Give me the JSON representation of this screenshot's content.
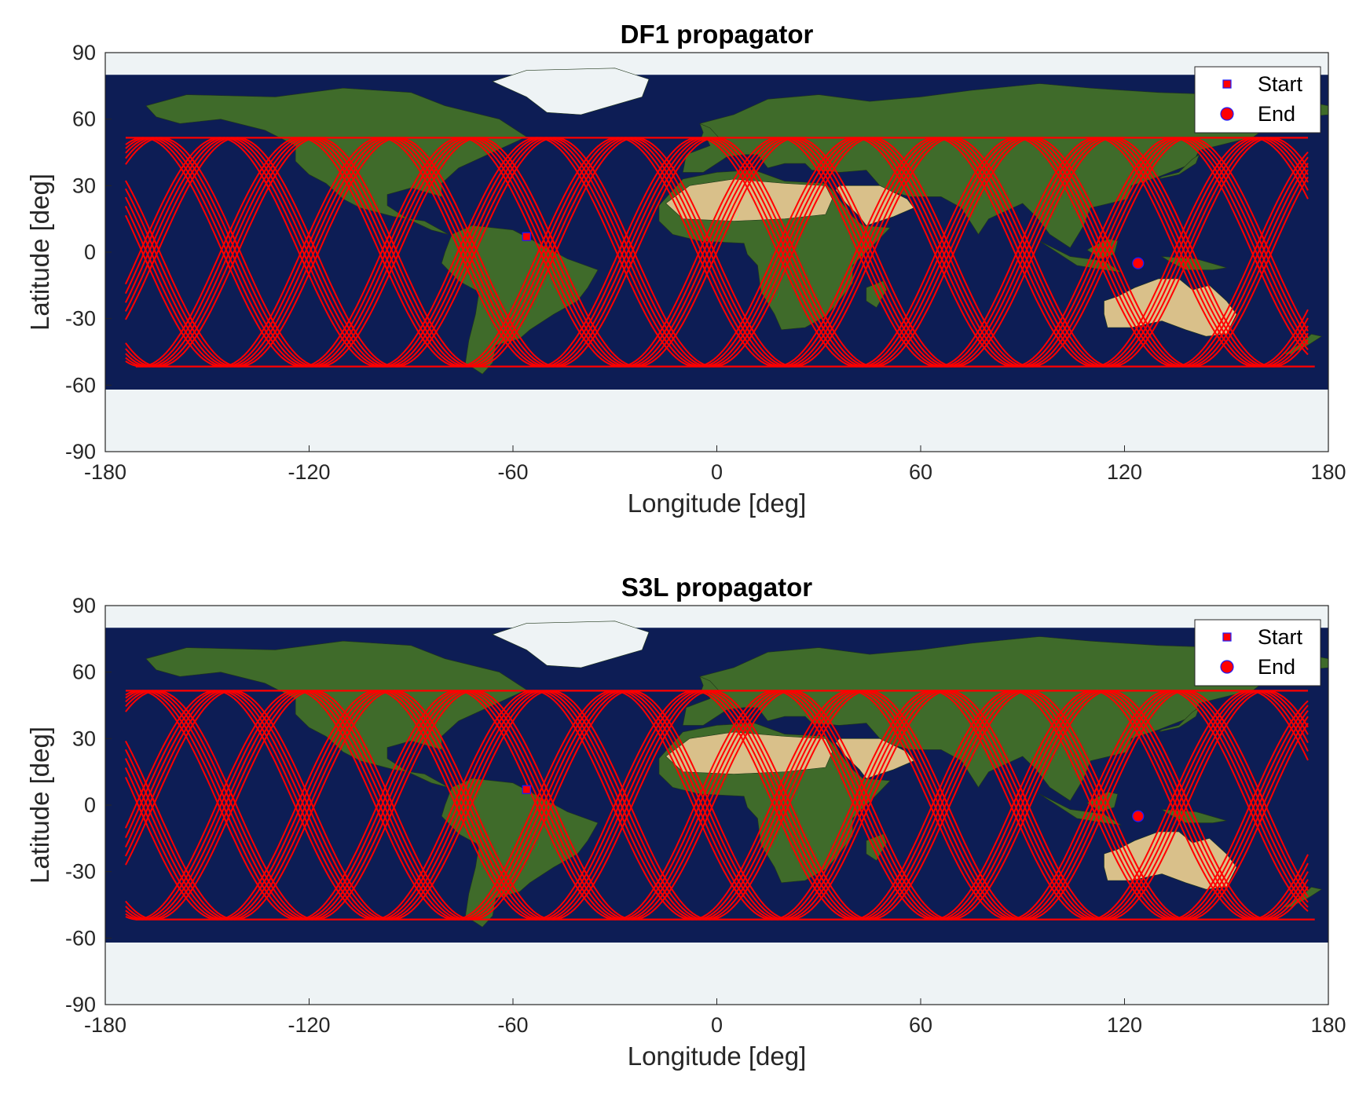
{
  "figure": {
    "panels": [
      {
        "title": "DF1 propagator",
        "xlabel": "Longitude [deg]",
        "ylabel": "Latitude [deg]",
        "legend": [
          {
            "label": "Start",
            "marker": "square"
          },
          {
            "label": "End",
            "marker": "circle"
          }
        ]
      },
      {
        "title": "S3L propagator",
        "xlabel": "Longitude [deg]",
        "ylabel": "Latitude [deg]",
        "legend": [
          {
            "label": "Start",
            "marker": "square"
          },
          {
            "label": "End",
            "marker": "circle"
          }
        ]
      }
    ],
    "xticks": [
      "-180",
      "-120",
      "-60",
      "0",
      "60",
      "120",
      "180"
    ],
    "yticks": [
      "90",
      "60",
      "30",
      "0",
      "-30",
      "-60",
      "-90"
    ]
  },
  "chart_data": [
    {
      "type": "line",
      "title": "DF1 propagator",
      "xlabel": "Longitude [deg]",
      "ylabel": "Latitude [deg]",
      "xlim": [
        -180,
        180
      ],
      "ylim": [
        -90,
        90
      ],
      "background": "world map",
      "ground_track": {
        "inclination_deg": 51.6,
        "passes": 10,
        "color": "#ff0000"
      },
      "start": {
        "lon": -56,
        "lat": 7
      },
      "end": {
        "lon": 124,
        "lat": -5
      },
      "legend_position": "top-right"
    },
    {
      "type": "line",
      "title": "S3L propagator",
      "xlabel": "Longitude [deg]",
      "ylabel": "Latitude [deg]",
      "xlim": [
        -180,
        180
      ],
      "ylim": [
        -90,
        90
      ],
      "background": "world map",
      "ground_track": {
        "inclination_deg": 51.6,
        "passes": 10,
        "color": "#ff0000"
      },
      "start": {
        "lon": -56,
        "lat": 7
      },
      "end": {
        "lon": 124,
        "lat": -5
      },
      "legend_position": "top-right"
    }
  ],
  "colors": {
    "ocean": "#0d1d55",
    "land_green": "#3f6b2a",
    "desert": "#d9c08a",
    "ice": "#eef3f5",
    "track": "#ff0000",
    "marker_edge": "#1a1aff"
  }
}
